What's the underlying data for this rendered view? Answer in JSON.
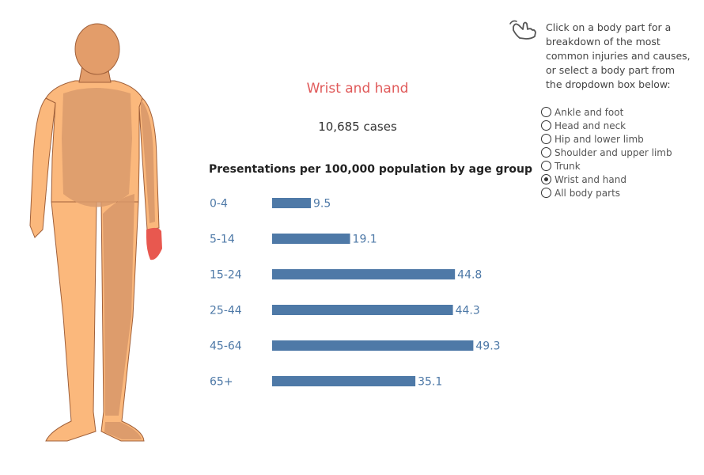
{
  "selected_part": {
    "title": "Wrist and hand",
    "cases_text": "10,685 cases"
  },
  "chart_title": "Presentations per 100,000 population by age group",
  "chart_data": {
    "type": "bar",
    "orientation": "horizontal",
    "title": "Presentations per 100,000 population by age group",
    "categories": [
      "0-4",
      "5-14",
      "15-24",
      "25-44",
      "45-64",
      "65+"
    ],
    "values": [
      9.5,
      19.1,
      44.8,
      44.3,
      49.3,
      35.1
    ],
    "labels": [
      "9.5",
      "19.1",
      "44.8",
      "44.3",
      "49.3",
      "35.1"
    ],
    "xlim": [
      0,
      50
    ],
    "bar_color": "#4e79a7",
    "category_color": "#4e79a7",
    "grid": false
  },
  "instructions": "Click on a body part for a breakdown of the most common injuries and causes, or select a body part from the dropdown box below:",
  "pointer_icon": "hand-pointer-icon",
  "body_parts": [
    {
      "label": "Ankle and foot",
      "selected": false
    },
    {
      "label": "Head and neck",
      "selected": false
    },
    {
      "label": "Hip and lower limb",
      "selected": false
    },
    {
      "label": "Shoulder and upper limb",
      "selected": false
    },
    {
      "label": "Trunk",
      "selected": false
    },
    {
      "label": "Wrist and hand",
      "selected": true
    },
    {
      "label": "All body parts",
      "selected": false
    }
  ],
  "colors": {
    "skin": "#fbb87c",
    "skin_outline": "#a0603a",
    "head": "#e39d6a",
    "torso_region": "#d99a6c",
    "limb_region": "#d7966a",
    "highlight": "#e8584f",
    "title": "#e05a5a"
  }
}
